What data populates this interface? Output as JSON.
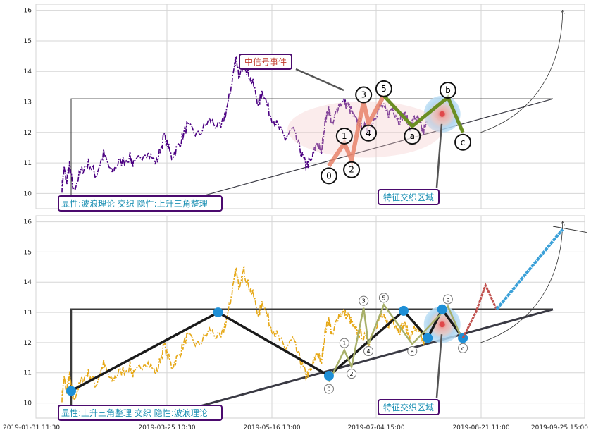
{
  "colors": {
    "top_price": "#4b0082",
    "bottom_price": "#e6a817",
    "wave_pink": "#e8836a",
    "wave_green": "#6b8e23",
    "wave_black": "#1a1a1a",
    "wave_olive": "#a8b06a",
    "node_blue": "#1e8fd6",
    "label_border": "#4b0a6e",
    "label_text": "#1a8fb3",
    "signal_text": "#c0392b",
    "projection_red": "#c0504d",
    "projection_blue": "#3aa0d8"
  },
  "chart_data": [
    {
      "type": "line",
      "panel": "top",
      "ylim": [
        9.5,
        16.2
      ],
      "yticks": [
        10,
        11,
        12,
        13,
        14,
        15,
        16
      ],
      "grid": true,
      "annotations": {
        "label_bottom_left": "显性:波浪理论 交织 隐性:上升三角整理",
        "signal_label": "中信号事件",
        "zone_label": "特征交织区域"
      },
      "wave_points": [
        {
          "label": "0",
          "t": 0.535,
          "y": 10.9
        },
        {
          "label": "1",
          "t": 0.567,
          "y": 11.65
        },
        {
          "label": "2",
          "t": 0.582,
          "y": 11.1
        },
        {
          "label": "3",
          "t": 0.607,
          "y": 13.0
        },
        {
          "label": "4",
          "t": 0.617,
          "y": 12.3
        },
        {
          "label": "5",
          "t": 0.649,
          "y": 13.2
        },
        {
          "label": "a",
          "t": 0.708,
          "y": 12.2
        },
        {
          "label": "b",
          "t": 0.782,
          "y": 13.15
        },
        {
          "label": "c",
          "t": 0.813,
          "y": 12.0
        }
      ]
    },
    {
      "type": "line",
      "panel": "bottom",
      "ylim": [
        9.5,
        16.2
      ],
      "yticks": [
        10,
        11,
        12,
        13,
        14,
        15,
        16
      ],
      "xticks": [
        "2019-01-31 11:30",
        "2019-03-25 10:30",
        "2019-05-16 13:00",
        "2019-07-04 15:00",
        "2019-08-21 11:00",
        "2019-09-25 15:00"
      ],
      "grid": true,
      "annotations": {
        "label_bottom_left": "显性:上升三角整理 交织 隐性:波浪理论",
        "zone_label": "特征交织区域"
      },
      "triangle_nodes": [
        {
          "t": 0.0,
          "y": 10.4
        },
        {
          "t": 0.305,
          "y": 13.0
        },
        {
          "t": 0.535,
          "y": 10.9
        },
        {
          "t": 0.69,
          "y": 13.05
        },
        {
          "t": 0.74,
          "y": 12.15
        },
        {
          "t": 0.77,
          "y": 13.1
        },
        {
          "t": 0.813,
          "y": 12.15
        }
      ],
      "wave_points": [
        {
          "label": "0",
          "t": 0.535,
          "y": 10.7
        },
        {
          "label": "1",
          "t": 0.567,
          "y": 11.75
        },
        {
          "label": "2",
          "t": 0.582,
          "y": 11.2
        },
        {
          "label": "3",
          "t": 0.607,
          "y": 13.15
        },
        {
          "label": "4",
          "t": 0.617,
          "y": 11.95
        },
        {
          "label": "5",
          "t": 0.649,
          "y": 13.25
        },
        {
          "label": "a",
          "t": 0.708,
          "y": 11.95
        },
        {
          "label": "b",
          "t": 0.782,
          "y": 13.2
        },
        {
          "label": "c",
          "t": 0.813,
          "y": 12.05
        }
      ]
    }
  ]
}
